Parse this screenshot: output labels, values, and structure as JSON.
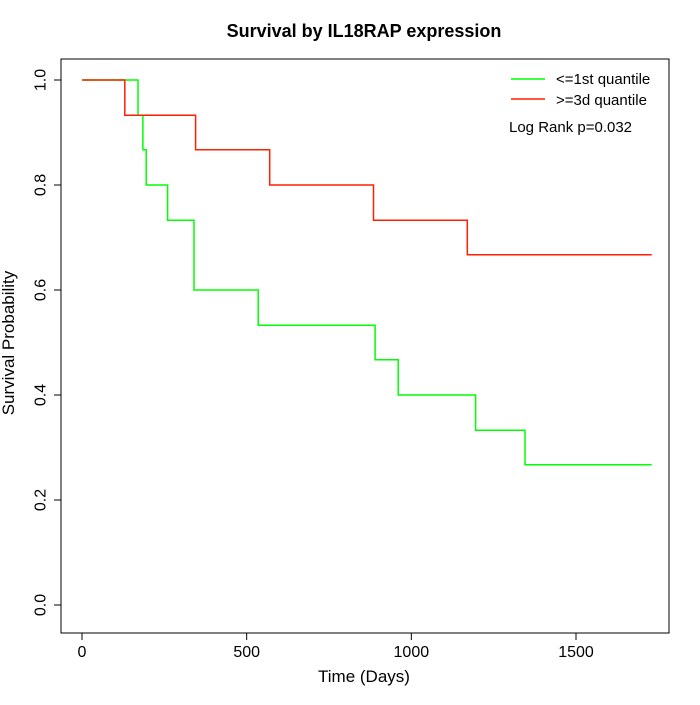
{
  "chart_data": {
    "type": "line",
    "step": true,
    "title": "Survival by IL18RAP expression",
    "xlabel": "Time (Days)",
    "ylabel": "Survival Probability",
    "xlim": [
      0,
      1750
    ],
    "ylim": [
      0,
      1.0
    ],
    "x_ticks": [
      0,
      500,
      1000,
      1500
    ],
    "x_tick_labels": [
      "0",
      "500",
      "1000",
      "1500"
    ],
    "y_ticks": [
      0.0,
      0.2,
      0.4,
      0.6,
      0.8,
      1.0
    ],
    "y_tick_labels": [
      "0.0",
      "0.2",
      "0.4",
      "0.6",
      "0.8",
      "1.0"
    ],
    "grid": false,
    "legend_position": "top-right",
    "annotation": "Log Rank p=0.032",
    "series": [
      {
        "name": "<=1st quantile",
        "color": "#00ff00",
        "x": [
          0,
          170,
          185,
          195,
          260,
          340,
          535,
          890,
          960,
          1195,
          1345,
          1730
        ],
        "y": [
          1.0,
          0.933,
          0.867,
          0.8,
          0.733,
          0.6,
          0.533,
          0.467,
          0.4,
          0.333,
          0.267,
          0.267
        ]
      },
      {
        "name": ">=3d quantile",
        "color": "#ff2000",
        "x": [
          0,
          130,
          345,
          570,
          885,
          1170,
          1730
        ],
        "y": [
          1.0,
          0.933,
          0.867,
          0.8,
          0.733,
          0.667,
          0.667
        ]
      }
    ]
  }
}
